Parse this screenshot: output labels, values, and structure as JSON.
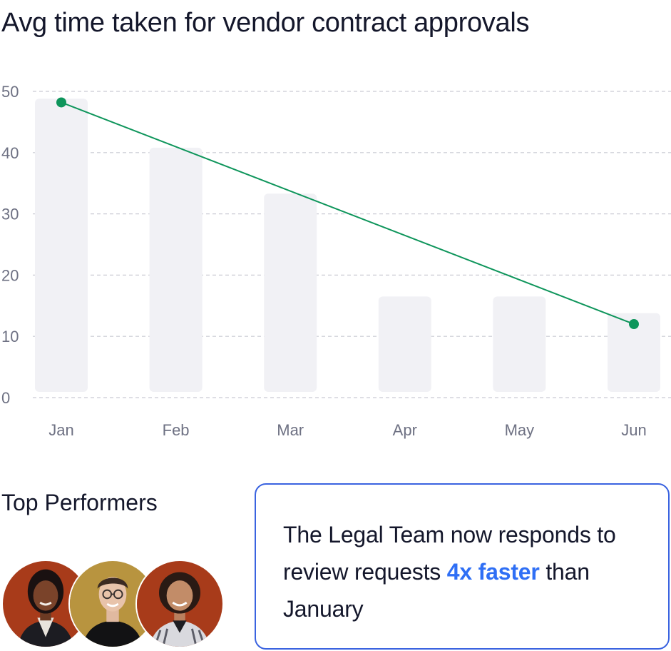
{
  "chart_data": {
    "type": "bar",
    "title": "Avg time taken for vendor contract approvals",
    "categories": [
      "Jan",
      "Feb",
      "Mar",
      "Apr",
      "May",
      "Jun"
    ],
    "values": [
      48.8,
      40.8,
      33.3,
      16.5,
      16.5,
      13.8
    ],
    "trend_line": {
      "from": {
        "x": "Jan",
        "y": 48.2
      },
      "to": {
        "x": "Jun",
        "y": 12.0
      }
    },
    "ylim": [
      0,
      50
    ],
    "yticks": [
      0,
      10,
      20,
      30,
      40,
      50
    ],
    "grid": true,
    "colors": {
      "bar": "#f1f1f5",
      "line": "#0e955b",
      "grid": "#c9cad3",
      "tick": "#6e7183"
    }
  },
  "performers": {
    "title": "Top Performers",
    "avatars": [
      {
        "name": "avatar-1",
        "bg": "#a83b1a"
      },
      {
        "name": "avatar-2",
        "bg": "#b8943f"
      },
      {
        "name": "avatar-3",
        "bg": "#a83b1a"
      }
    ]
  },
  "callout": {
    "text_before": "The Legal Team now responds to review requests ",
    "highlight": "4x faster",
    "text_after": " than January",
    "border_color": "#3a63e0",
    "highlight_color": "#2f6ff5"
  }
}
